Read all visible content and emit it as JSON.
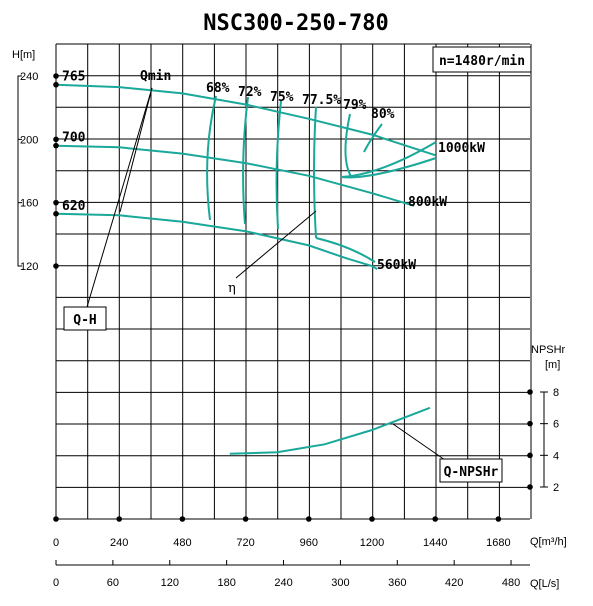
{
  "chart_data": {
    "type": "line",
    "title": "NSC300-250-780",
    "speed_label": "n=1480r/min",
    "x_axis_primary": {
      "label": "Q[m³/h]",
      "ticks": [
        "0",
        "240",
        "480",
        "720",
        "960",
        "1200",
        "1440",
        "1680"
      ],
      "range": [
        0,
        1800
      ]
    },
    "x_axis_secondary": {
      "label": "Q[L/s]",
      "ticks": [
        "0",
        "60",
        "120",
        "180",
        "240",
        "300",
        "360",
        "420",
        "480"
      ],
      "range": [
        0,
        500
      ]
    },
    "y_axis_head": {
      "label": "H[m]",
      "ticks": [
        "240",
        "200",
        "160",
        "120"
      ],
      "range": [
        120,
        240
      ]
    },
    "y_axis_npsh": {
      "label_line1": "NPSHr",
      "label_line2": "[m]",
      "ticks": [
        "8",
        "6",
        "4",
        "2"
      ],
      "range": [
        2,
        8
      ]
    },
    "impeller_diameters": [
      {
        "label": "765",
        "Q": [
          0,
          240,
          480,
          720,
          960,
          1200,
          1440
        ],
        "H": [
          234.5,
          233,
          229,
          222,
          213,
          203,
          190
        ]
      },
      {
        "label": "700",
        "Q": [
          0,
          240,
          480,
          720,
          960,
          1200,
          1360
        ],
        "H": [
          196,
          195,
          191,
          185,
          177,
          166,
          158
        ]
      },
      {
        "label": "620",
        "Q": [
          0,
          240,
          480,
          720,
          960,
          1100,
          1200,
          1220
        ],
        "H": [
          153,
          152,
          148,
          142,
          133,
          125,
          120,
          118
        ]
      }
    ],
    "npsh_curve": {
      "label": "Q-NPSHr",
      "Q": [
        660,
        840,
        1020,
        1200,
        1420
      ],
      "NPSH": [
        4.1,
        4.2,
        4.7,
        5.6,
        7.0
      ]
    },
    "efficiency_labels": [
      "68%",
      "72%",
      "75%",
      "77.5%",
      "79%",
      "80%"
    ],
    "power_labels": [
      "1000kW",
      "800kW",
      "560kW"
    ],
    "curve_labels": {
      "qmin": "Qmin",
      "eta": "η",
      "qh": "Q-H"
    },
    "colors": {
      "curve": "#1aa89a",
      "grid": "#000000"
    }
  }
}
